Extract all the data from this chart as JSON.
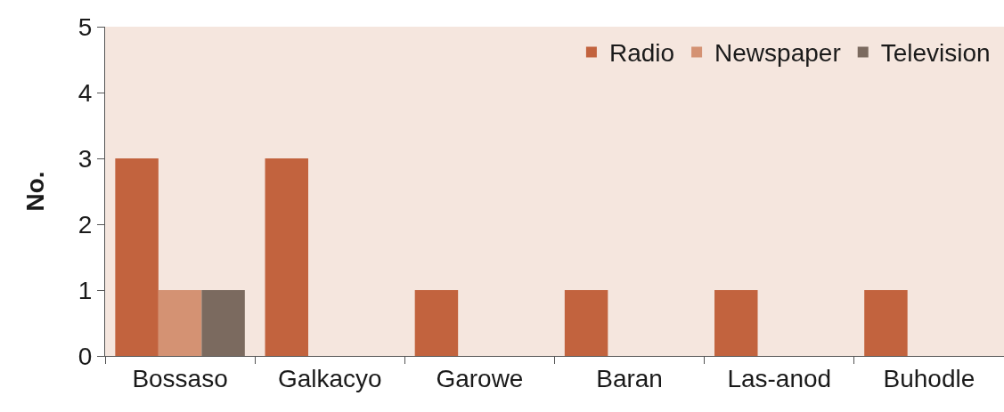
{
  "chart_data": {
    "type": "bar",
    "ylabel": "No.",
    "categories": [
      "Bossaso",
      "Galkacyo",
      "Garowe",
      "Baran",
      "Las-anod",
      "Buhodle"
    ],
    "series": [
      {
        "name": "Radio",
        "color": "#c2633e",
        "values": [
          3,
          3,
          1,
          1,
          1,
          1
        ]
      },
      {
        "name": "Newspaper",
        "color": "#d49273",
        "values": [
          1,
          0,
          0,
          0,
          0,
          0
        ]
      },
      {
        "name": "Television",
        "color": "#7b6a5f",
        "values": [
          1,
          0,
          0,
          0,
          0,
          0
        ]
      }
    ],
    "ylim": [
      0,
      5
    ],
    "yticks": [
      0,
      1,
      2,
      3,
      4,
      5
    ],
    "grid": false,
    "legend": "top right"
  }
}
